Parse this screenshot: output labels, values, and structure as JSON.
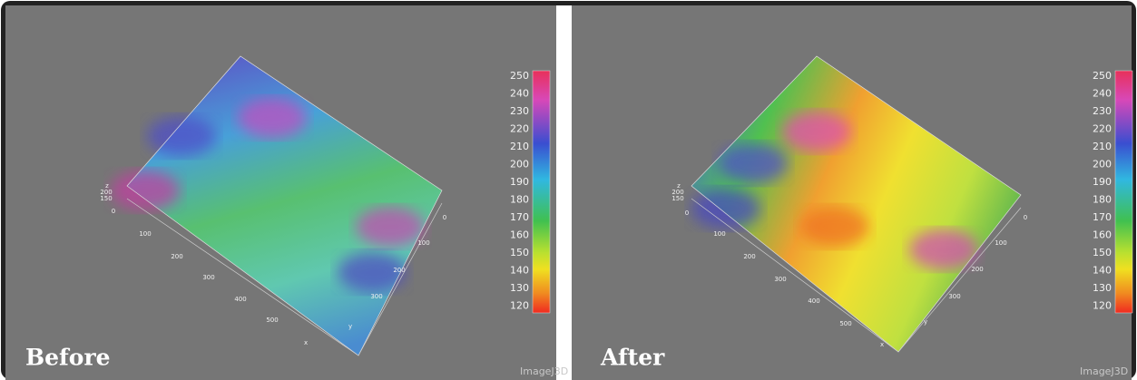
{
  "panels": [
    {
      "label": "Before",
      "colorbar_ticks": [
        "250",
        "240",
        "230",
        "220",
        "210",
        "200",
        "190",
        "180",
        "170",
        "160",
        "150",
        "140",
        "130",
        "120"
      ],
      "x_ticks": [
        "100",
        "200",
        "300",
        "400",
        "500"
      ],
      "x_label": "x",
      "y_ticks": [
        "0",
        "100",
        "200",
        "300"
      ],
      "y_label": "y",
      "z_ticks": [
        "z",
        "200",
        "150",
        "0"
      ],
      "watermark": "ImageJ3D"
    },
    {
      "label": "After",
      "colorbar_ticks": [
        "250",
        "240",
        "230",
        "220",
        "210",
        "200",
        "190",
        "180",
        "170",
        "160",
        "150",
        "140",
        "130",
        "120"
      ],
      "x_ticks": [
        "100",
        "200",
        "300",
        "400",
        "500"
      ],
      "x_label": "x",
      "y_ticks": [
        "0",
        "100",
        "200",
        "300"
      ],
      "y_label": "y",
      "z_ticks": [
        "z",
        "200",
        "150",
        "0"
      ],
      "watermark": "ImageJ3D"
    }
  ]
}
